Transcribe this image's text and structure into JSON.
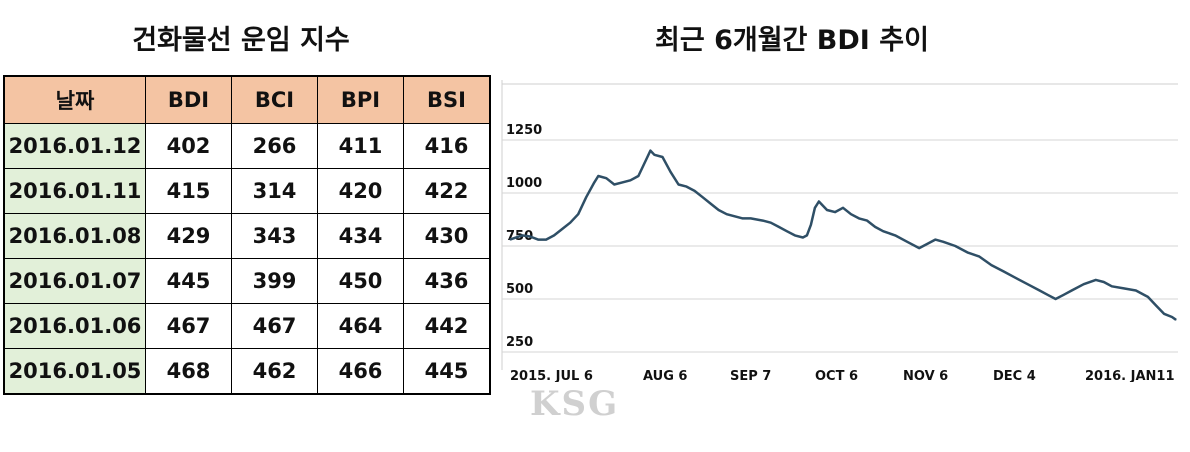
{
  "table": {
    "title": "건화물선 운임 지수",
    "headers": [
      "날짜",
      "BDI",
      "BCI",
      "BPI",
      "BSI"
    ],
    "rows": [
      [
        "2016.01.12",
        "402",
        "266",
        "411",
        "416"
      ],
      [
        "2016.01.11",
        "415",
        "314",
        "420",
        "422"
      ],
      [
        "2016.01.08",
        "429",
        "343",
        "434",
        "430"
      ],
      [
        "2016.01.07",
        "445",
        "399",
        "450",
        "436"
      ],
      [
        "2016.01.06",
        "467",
        "467",
        "464",
        "442"
      ],
      [
        "2016.01.05",
        "468",
        "462",
        "466",
        "445"
      ]
    ],
    "header_color": "#f4c4a3",
    "date_cell_color": "#e2f0d9"
  },
  "chart_title": "최근 6개월간 BDI 추이",
  "watermark": "KSG",
  "chart_data": {
    "type": "line",
    "title": "최근 6개월간 BDI 추이",
    "xlabel": "",
    "ylabel": "",
    "ylim": [
      250,
      1250
    ],
    "yticks": [
      "1250",
      "1000",
      "750",
      "500",
      "250"
    ],
    "ytick_values": [
      1250,
      1000,
      750,
      500,
      250
    ],
    "xticks": [
      "2015. JUL 6",
      "AUG 6",
      "SEP 7",
      "OCT 6",
      "NOV 6",
      "DEC 4",
      "2016. JAN11"
    ],
    "xtick_days": [
      0,
      31,
      63,
      92,
      123,
      151,
      189
    ],
    "grid": true,
    "line_color": "#2f4f66",
    "series": [
      {
        "values": [
          [
            -3,
            780
          ],
          [
            0,
            800
          ],
          [
            2,
            795
          ],
          [
            4,
            780
          ],
          [
            6,
            780
          ],
          [
            8,
            800
          ],
          [
            10,
            830
          ],
          [
            12,
            860
          ],
          [
            14,
            900
          ],
          [
            16,
            980
          ],
          [
            18,
            1050
          ],
          [
            19,
            1080
          ],
          [
            21,
            1070
          ],
          [
            23,
            1040
          ],
          [
            25,
            1050
          ],
          [
            27,
            1060
          ],
          [
            29,
            1080
          ],
          [
            31,
            1160
          ],
          [
            32,
            1200
          ],
          [
            33,
            1180
          ],
          [
            35,
            1170
          ],
          [
            37,
            1100
          ],
          [
            39,
            1040
          ],
          [
            41,
            1030
          ],
          [
            43,
            1010
          ],
          [
            45,
            980
          ],
          [
            47,
            950
          ],
          [
            49,
            920
          ],
          [
            51,
            900
          ],
          [
            53,
            890
          ],
          [
            55,
            880
          ],
          [
            57,
            880
          ],
          [
            60,
            870
          ],
          [
            62,
            860
          ],
          [
            64,
            840
          ],
          [
            66,
            820
          ],
          [
            68,
            800
          ],
          [
            70,
            790
          ],
          [
            71,
            800
          ],
          [
            72,
            850
          ],
          [
            73,
            930
          ],
          [
            74,
            960
          ],
          [
            76,
            920
          ],
          [
            78,
            910
          ],
          [
            80,
            930
          ],
          [
            82,
            900
          ],
          [
            84,
            880
          ],
          [
            86,
            870
          ],
          [
            88,
            840
          ],
          [
            90,
            820
          ],
          [
            93,
            800
          ],
          [
            96,
            770
          ],
          [
            99,
            740
          ],
          [
            101,
            760
          ],
          [
            103,
            780
          ],
          [
            105,
            770
          ],
          [
            108,
            750
          ],
          [
            111,
            720
          ],
          [
            114,
            700
          ],
          [
            117,
            660
          ],
          [
            120,
            630
          ],
          [
            123,
            600
          ],
          [
            126,
            570
          ],
          [
            129,
            540
          ],
          [
            131,
            520
          ],
          [
            133,
            500
          ],
          [
            135,
            520
          ],
          [
            137,
            540
          ],
          [
            140,
            570
          ],
          [
            143,
            590
          ],
          [
            145,
            580
          ],
          [
            147,
            560
          ],
          [
            150,
            550
          ],
          [
            153,
            540
          ],
          [
            156,
            510
          ],
          [
            158,
            470
          ],
          [
            160,
            430
          ],
          [
            162,
            415
          ],
          [
            163,
            402
          ]
        ]
      }
    ]
  }
}
